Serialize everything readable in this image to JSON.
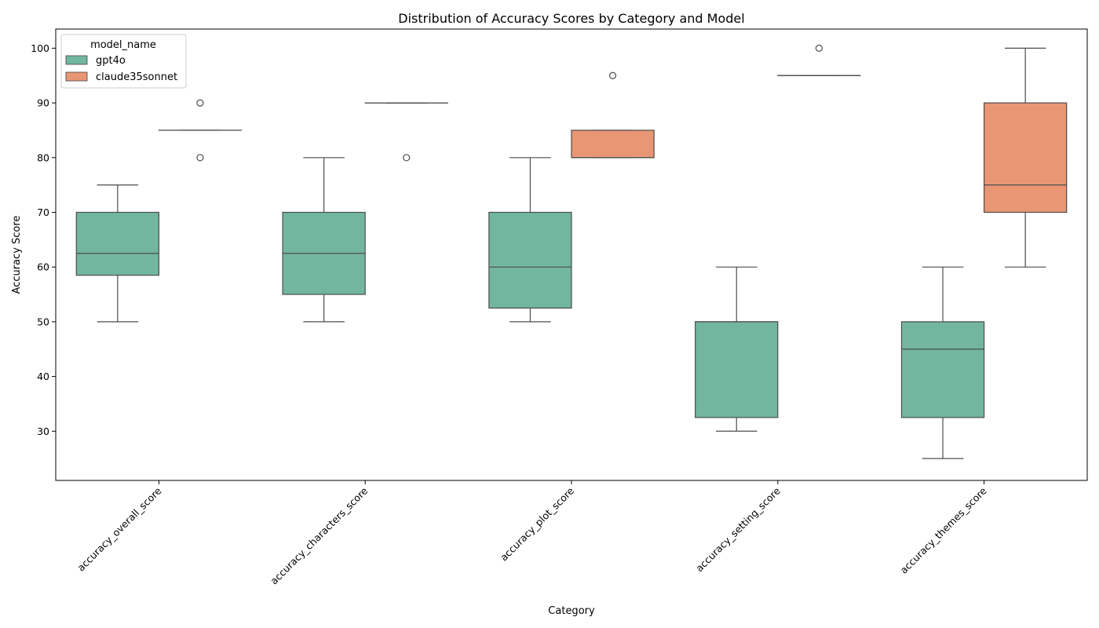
{
  "chart_data": {
    "type": "box",
    "title": "Distribution of Accuracy Scores by Category and Model",
    "xlabel": "Category",
    "ylabel": "Accuracy Score",
    "ylim": [
      21,
      103.5
    ],
    "yticks": [
      30,
      40,
      50,
      60,
      70,
      80,
      90,
      100
    ],
    "categories": [
      "accuracy_overall_score",
      "accuracy_characters_score",
      "accuracy_plot_score",
      "accuracy_setting_score",
      "accuracy_themes_score"
    ],
    "legend": {
      "title": "model_name",
      "position": "top-left"
    },
    "grid": false,
    "series": [
      {
        "name": "gpt4o",
        "color": "#72b6a0",
        "boxes": [
          {
            "whisker_low": 50,
            "q1": 58.5,
            "median": 62.5,
            "q3": 70,
            "whisker_high": 75,
            "outliers": []
          },
          {
            "whisker_low": 50,
            "q1": 55,
            "median": 62.5,
            "q3": 70,
            "whisker_high": 80,
            "outliers": []
          },
          {
            "whisker_low": 50,
            "q1": 52.5,
            "median": 60,
            "q3": 70,
            "whisker_high": 80,
            "outliers": []
          },
          {
            "whisker_low": 30,
            "q1": 32.5,
            "median": 50,
            "q3": 50,
            "whisker_high": 60,
            "outliers": []
          },
          {
            "whisker_low": 25,
            "q1": 32.5,
            "median": 45,
            "q3": 50,
            "whisker_high": 60,
            "outliers": []
          }
        ]
      },
      {
        "name": "claude35sonnet",
        "color": "#e99675",
        "boxes": [
          {
            "whisker_low": 85,
            "q1": 85,
            "median": 85,
            "q3": 85,
            "whisker_high": 85,
            "outliers": [
              80,
              90
            ]
          },
          {
            "whisker_low": 90,
            "q1": 90,
            "median": 90,
            "q3": 90,
            "whisker_high": 90,
            "outliers": [
              80
            ]
          },
          {
            "whisker_low": 80,
            "q1": 80,
            "median": 80,
            "q3": 85,
            "whisker_high": 85,
            "outliers": [
              95
            ]
          },
          {
            "whisker_low": 95,
            "q1": 95,
            "median": 95,
            "q3": 95,
            "whisker_high": 95,
            "outliers": [
              100
            ]
          },
          {
            "whisker_low": 60,
            "q1": 70,
            "median": 75,
            "q3": 90,
            "whisker_high": 100,
            "outliers": []
          }
        ]
      }
    ]
  }
}
